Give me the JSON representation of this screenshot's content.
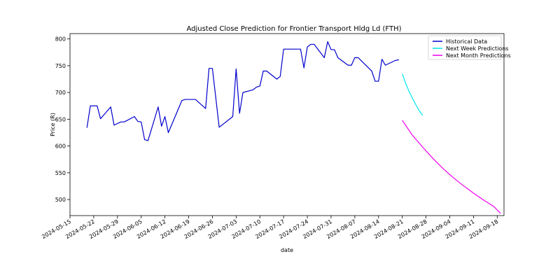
{
  "chart_data": {
    "type": "line",
    "title": "Adjusted Close Prediction for Frontier Transport Hldg Ld (FTH)",
    "xlabel": "date",
    "ylabel": "Price (R)",
    "xlim": [
      "2024-05-15",
      "2024-09-20"
    ],
    "ylim": [
      470,
      810
    ],
    "x_ticks": [
      "2024-05-15",
      "2024-05-22",
      "2024-05-29",
      "2024-06-05",
      "2024-06-12",
      "2024-06-19",
      "2024-06-26",
      "2024-07-03",
      "2024-07-10",
      "2024-07-17",
      "2024-07-24",
      "2024-07-31",
      "2024-08-07",
      "2024-08-14",
      "2024-08-21",
      "2024-08-28",
      "2024-09-04",
      "2024-09-11",
      "2024-09-18"
    ],
    "y_ticks": [
      500,
      550,
      600,
      650,
      700,
      750,
      800
    ],
    "legend_position": "top-right",
    "series": [
      {
        "name": "Historical Data",
        "color": "#0000cc",
        "points": [
          [
            "2024-05-20",
            634
          ],
          [
            "2024-05-21",
            675
          ],
          [
            "2024-05-23",
            675
          ],
          [
            "2024-05-24",
            651
          ],
          [
            "2024-05-27",
            673
          ],
          [
            "2024-05-28",
            639
          ],
          [
            "2024-05-30",
            645
          ],
          [
            "2024-05-31",
            645
          ],
          [
            "2024-06-03",
            655
          ],
          [
            "2024-06-04",
            646
          ],
          [
            "2024-06-05",
            645
          ],
          [
            "2024-06-06",
            612
          ],
          [
            "2024-06-07",
            610
          ],
          [
            "2024-06-10",
            673
          ],
          [
            "2024-06-11",
            637
          ],
          [
            "2024-06-12",
            655
          ],
          [
            "2024-06-13",
            625
          ],
          [
            "2024-06-17",
            685
          ],
          [
            "2024-06-18",
            687
          ],
          [
            "2024-06-21",
            687
          ],
          [
            "2024-06-24",
            670
          ],
          [
            "2024-06-25",
            745
          ],
          [
            "2024-06-26",
            745
          ],
          [
            "2024-06-28",
            635
          ],
          [
            "2024-07-02",
            655
          ],
          [
            "2024-07-03",
            744
          ],
          [
            "2024-07-04",
            661
          ],
          [
            "2024-07-05",
            700
          ],
          [
            "2024-07-08",
            705
          ],
          [
            "2024-07-09",
            710
          ],
          [
            "2024-07-10",
            712
          ],
          [
            "2024-07-11",
            740
          ],
          [
            "2024-07-12",
            740
          ],
          [
            "2024-07-15",
            725
          ],
          [
            "2024-07-16",
            730
          ],
          [
            "2024-07-17",
            781
          ],
          [
            "2024-07-18",
            781
          ],
          [
            "2024-07-22",
            781
          ],
          [
            "2024-07-23",
            746
          ],
          [
            "2024-07-24",
            785
          ],
          [
            "2024-07-25",
            790
          ],
          [
            "2024-07-26",
            790
          ],
          [
            "2024-07-29",
            765
          ],
          [
            "2024-07-30",
            795
          ],
          [
            "2024-07-31",
            780
          ],
          [
            "2024-08-01",
            780
          ],
          [
            "2024-08-02",
            765
          ],
          [
            "2024-08-05",
            751
          ],
          [
            "2024-08-06",
            751
          ],
          [
            "2024-08-07",
            765
          ],
          [
            "2024-08-08",
            765
          ],
          [
            "2024-08-12",
            740
          ],
          [
            "2024-08-13",
            721
          ],
          [
            "2024-08-14",
            721
          ],
          [
            "2024-08-15",
            762
          ],
          [
            "2024-08-16",
            751
          ],
          [
            "2024-08-19",
            760
          ],
          [
            "2024-08-20",
            761
          ]
        ]
      },
      {
        "name": "Next Week Predictions",
        "color": "#00e5ee",
        "points": [
          [
            "2024-08-21",
            735
          ],
          [
            "2024-08-22",
            717
          ],
          [
            "2024-08-23",
            702
          ],
          [
            "2024-08-24",
            689
          ],
          [
            "2024-08-25",
            677
          ],
          [
            "2024-08-26",
            666
          ],
          [
            "2024-08-27",
            657
          ]
        ]
      },
      {
        "name": "Next Month Predictions",
        "color": "#ee00ee",
        "points": [
          [
            "2024-08-21",
            648
          ],
          [
            "2024-08-24",
            620
          ],
          [
            "2024-08-27",
            598
          ],
          [
            "2024-08-30",
            577
          ],
          [
            "2024-09-02",
            558
          ],
          [
            "2024-09-05",
            541
          ],
          [
            "2024-09-08",
            526
          ],
          [
            "2024-09-11",
            512
          ],
          [
            "2024-09-14",
            499
          ],
          [
            "2024-09-17",
            487
          ],
          [
            "2024-09-19",
            474
          ]
        ]
      }
    ]
  }
}
